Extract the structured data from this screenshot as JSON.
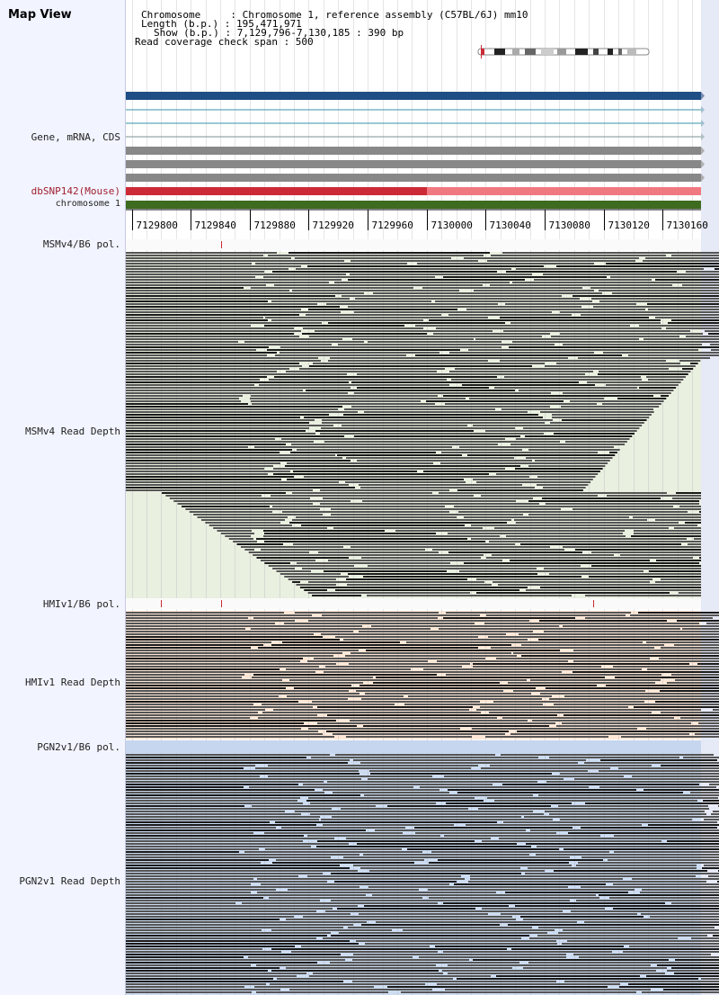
{
  "app": {
    "title": "Map View"
  },
  "header": {
    "chromosome": "Chromosome     : Chromosome 1, reference assembly (C57BL/6J) mm10",
    "length": "Length (b.p.) : 195,471,971",
    "show": "Show (b.p.) : 7,129,796-7,130,185 : 390 bp",
    "coverage": "Read coverage check span : 500"
  },
  "tracks": {
    "gene_label": "Gene, mRNA, CDS",
    "dbsnp_label": "dbSNP142(Mouse)",
    "chromosome_label": "chromosome 1",
    "msm_pol_label": "MSMv4/B6 pol.",
    "msm_depth_label": "MSMv4 Read Depth",
    "hmi_pol_label": "HMIv1/B6 pol.",
    "hmi_depth_label": "HMIv1 Read Depth",
    "pgn_pol_label": "PGN2v1/B6 pol.",
    "pgn_depth_label": "PGN2v1 Read Depth"
  },
  "ruler": {
    "ticks": [
      "7129800",
      "7129840",
      "7129880",
      "7129920",
      "7129960",
      "7130000",
      "7130040",
      "7130080",
      "7130120",
      "7130160"
    ],
    "tick_positions_bp": [
      7129800,
      7129840,
      7129880,
      7129920,
      7129960,
      7130000,
      7130040,
      7130080,
      7130120,
      7130160
    ],
    "start_bp": 7129796,
    "end_bp": 7130185
  },
  "colors": {
    "gene_main": "#1f4e85",
    "gene_thin": "#3a8fa8",
    "transcript": "#888888",
    "snp_dark": "#cc2a36",
    "snp_light": "#f07880",
    "chromosome": "#3d6b20",
    "msm_bg": "#eaf0e0",
    "hmi_bg": "#fde8d8",
    "pgn_bg": "#cddcf0",
    "read_dark": "#1a1a1a",
    "read_mid": "#555555"
  }
}
